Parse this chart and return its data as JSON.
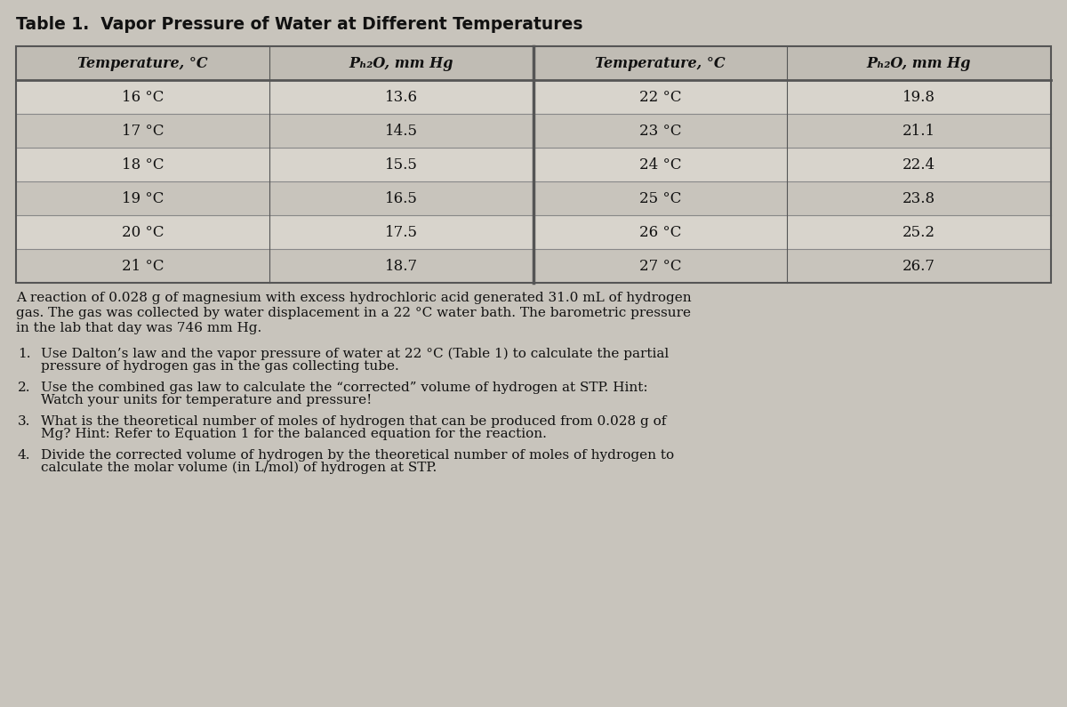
{
  "title": "Table 1.  Vapor Pressure of Water at Different Temperatures",
  "title_fontsize": 13.5,
  "header_row": [
    "Temperature, °C",
    "Pₕ₂O, mm Hg",
    "Temperature, °C",
    "Pₕ₂O, mm Hg"
  ],
  "left_temps": [
    "16 °C",
    "17 °C",
    "18 °C",
    "19 °C",
    "20 °C",
    "21 °C"
  ],
  "left_pressures": [
    "13.6",
    "14.5",
    "15.5",
    "16.5",
    "17.5",
    "18.7"
  ],
  "right_temps": [
    "22 °C",
    "23 °C",
    "24 °C",
    "25 °C",
    "26 °C",
    "27 °C"
  ],
  "right_pressures": [
    "19.8",
    "21.1",
    "22.4",
    "23.8",
    "25.2",
    "26.7"
  ],
  "paragraph": "A reaction of 0.028 g of magnesium with excess hydrochloric acid generated 31.0 mL of hydrogen\ngas. The gas was collected by water displacement in a 22 °C water bath. The barometric pressure\nin the lab that day was 746 mm Hg.",
  "q1_num": "1.",
  "q1_text": "Use Dalton’s law and the vapor pressure of water at 22 °C (Table 1) to calculate the partial\npressure of hydrogen gas in the gas collecting tube.",
  "q2_num": "2.",
  "q2_text": "Use the combined gas law to calculate the “corrected” volume of hydrogen at STP. Hint:\nWatch your units for temperature and pressure!",
  "q3_num": "3.",
  "q3_text": "What is the theoretical number of moles of hydrogen that can be produced from 0.028 g of\nMg? Hint: Refer to Equation 1 for the balanced equation for the reaction.",
  "q4_num": "4.",
  "q4_text": "Divide the corrected volume of hydrogen by the theoretical number of moles of hydrogen to\ncalculate the molar volume (in L/mol) of hydrogen at STP.",
  "bg_color": "#c8c4bc",
  "table_bg_light": "#d8d4cc",
  "table_bg_dark": "#c8c4bc",
  "header_bg": "#c0bcb4",
  "line_color_dark": "#555555",
  "line_color_mid": "#888888",
  "text_color": "#111111",
  "font_size_table_data": 12,
  "font_size_header": 11.5,
  "font_size_body": 11,
  "font_size_title": 13.5
}
